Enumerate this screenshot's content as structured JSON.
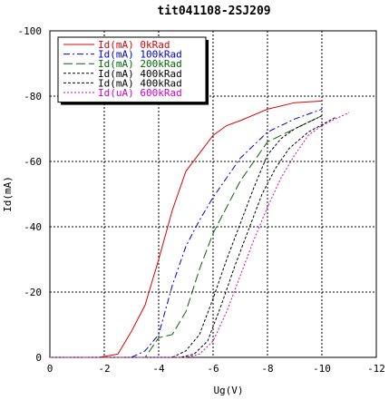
{
  "chart_data": {
    "type": "line",
    "title": "tit041108-2SJ209",
    "xlabel": "Ug(V)",
    "ylabel": "Id(mA)",
    "xlim": [
      0,
      -12
    ],
    "ylim": [
      0,
      -100
    ],
    "xticks": [
      0,
      -2,
      -4,
      -6,
      -8,
      -10,
      -12
    ],
    "yticks": [
      0,
      -20,
      -40,
      -60,
      -80,
      -100
    ],
    "grid": true,
    "legend_position": "top-left",
    "series": [
      {
        "name": "Id(mA) 0kRad",
        "color": "#dd0000",
        "dash": "solid",
        "points": [
          [
            0,
            0
          ],
          [
            -1.8,
            0
          ],
          [
            -2.5,
            -1
          ],
          [
            -3.0,
            -8
          ],
          [
            -3.5,
            -16
          ],
          [
            -4.0,
            -30
          ],
          [
            -4.5,
            -45
          ],
          [
            -5.0,
            -57
          ],
          [
            -6.0,
            -68
          ],
          [
            -6.5,
            -71
          ],
          [
            -7.0,
            -72.5
          ],
          [
            -8.0,
            -76
          ],
          [
            -9.0,
            -78
          ],
          [
            -10.0,
            -78.5
          ]
        ]
      },
      {
        "name": "Id(mA) 100kRad",
        "color": "#0000cc",
        "dash": "dashdot",
        "points": [
          [
            0,
            0
          ],
          [
            -2.8,
            0
          ],
          [
            -3.0,
            0
          ],
          [
            -3.5,
            -2
          ],
          [
            -4.0,
            -7
          ],
          [
            -4.5,
            -22
          ],
          [
            -5.0,
            -34
          ],
          [
            -5.5,
            -42
          ],
          [
            -6.0,
            -49
          ],
          [
            -6.5,
            -55
          ],
          [
            -7.0,
            -61
          ],
          [
            -8.0,
            -69
          ],
          [
            -9.0,
            -73
          ],
          [
            -10.0,
            -76
          ]
        ]
      },
      {
        "name": "Id(mA) 200kRad",
        "color": "#006600",
        "dash": "longdash",
        "points": [
          [
            0,
            0
          ],
          [
            -3.5,
            0
          ],
          [
            -4.0,
            -6
          ],
          [
            -4.5,
            -7
          ],
          [
            -5.0,
            -14
          ],
          [
            -5.5,
            -27
          ],
          [
            -6.0,
            -38
          ],
          [
            -6.5,
            -46
          ],
          [
            -7.0,
            -54
          ],
          [
            -7.5,
            -60
          ],
          [
            -8.0,
            -66
          ],
          [
            -9.0,
            -70
          ],
          [
            -10.0,
            -74
          ]
        ]
      },
      {
        "name": "Id(mA) 400kRad",
        "color": "#000000",
        "dash": "shortdash",
        "points": [
          [
            0,
            0
          ],
          [
            -4.5,
            0
          ],
          [
            -5.0,
            -2
          ],
          [
            -5.5,
            -7
          ],
          [
            -6.0,
            -18
          ],
          [
            -6.5,
            -30
          ],
          [
            -7.0,
            -41
          ],
          [
            -7.5,
            -52
          ],
          [
            -8.0,
            -62
          ],
          [
            -8.5,
            -67
          ],
          [
            -9.0,
            -70
          ],
          [
            -10.0,
            -74
          ]
        ]
      },
      {
        "name": "Id(mA) 400kRad",
        "color": "#000000",
        "dash": "shortdash",
        "points": [
          [
            0,
            0
          ],
          [
            -4.8,
            0
          ],
          [
            -5.3,
            -1
          ],
          [
            -5.8,
            -5
          ],
          [
            -6.3,
            -16
          ],
          [
            -6.8,
            -28
          ],
          [
            -7.3,
            -39
          ],
          [
            -7.8,
            -50
          ],
          [
            -8.3,
            -58
          ],
          [
            -8.8,
            -64
          ],
          [
            -9.5,
            -69
          ],
          [
            -10.5,
            -73.5
          ]
        ]
      },
      {
        "name": "Id(uA) 600kRad",
        "color": "#cc00cc",
        "dash": "dotted",
        "points": [
          [
            0,
            0
          ],
          [
            -5.0,
            0
          ],
          [
            -5.5,
            -1
          ],
          [
            -6.0,
            -5
          ],
          [
            -6.5,
            -14
          ],
          [
            -7.0,
            -25
          ],
          [
            -7.5,
            -36
          ],
          [
            -8.0,
            -46
          ],
          [
            -8.5,
            -55
          ],
          [
            -9.0,
            -62
          ],
          [
            -9.5,
            -68
          ],
          [
            -10.0,
            -71
          ],
          [
            -11.0,
            -75
          ]
        ]
      }
    ]
  }
}
